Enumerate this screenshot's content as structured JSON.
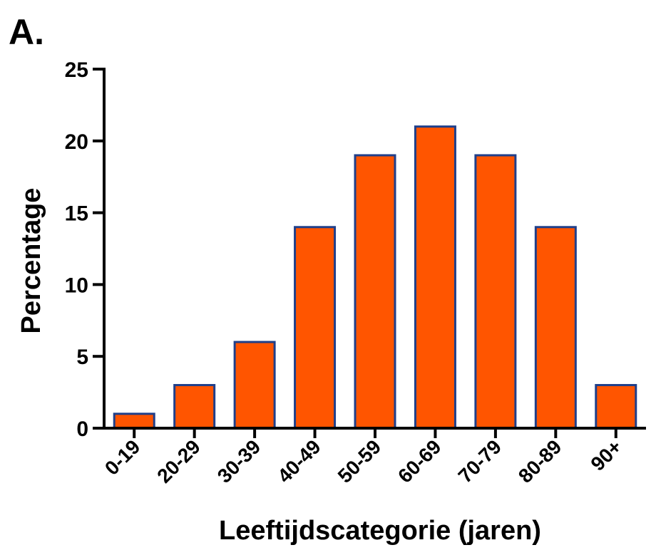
{
  "panel_label": "A.",
  "chart_data": {
    "type": "bar",
    "categories": [
      "0-19",
      "20-29",
      "30-39",
      "40-49",
      "50-59",
      "60-69",
      "70-79",
      "80-89",
      "90+"
    ],
    "values": [
      1,
      3,
      6,
      14,
      19,
      21,
      19,
      14,
      3
    ],
    "title": "",
    "xlabel": "Leeftijdscategorie (jaren)",
    "ylabel": "Percentage",
    "ylim": [
      0,
      25
    ],
    "yticks": [
      0,
      5,
      10,
      15,
      20,
      25
    ],
    "grid": false,
    "bar_color": "#ff5500",
    "bar_edge_color": "#1f3f8a"
  }
}
